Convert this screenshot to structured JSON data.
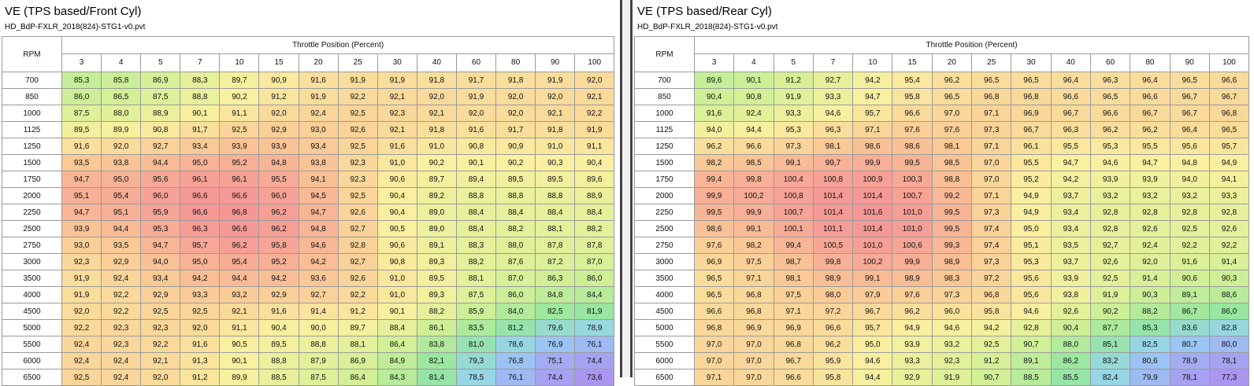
{
  "front": {
    "title": "VE (TPS based/Front Cyl)",
    "file": "HD_BdP-FXLR_2018(824)-STG1-v0.pvt",
    "rpm_label": "RPM",
    "axis_label": "Throttle Position (Percent)",
    "columns": [
      "3",
      "4",
      "5",
      "7",
      "10",
      "15",
      "20",
      "25",
      "30",
      "40",
      "60",
      "80",
      "90",
      "100"
    ],
    "rows": [
      {
        "rpm": "700",
        "values": [
          "85,3",
          "85,8",
          "86,9",
          "88,3",
          "89,7",
          "90,9",
          "91,6",
          "91,9",
          "91,9",
          "91,8",
          "91,7",
          "91,8",
          "91,9",
          "92,0"
        ]
      },
      {
        "rpm": "850",
        "values": [
          "86,0",
          "86,5",
          "87,5",
          "88,8",
          "90,2",
          "91,2",
          "91,9",
          "92,2",
          "92,1",
          "92,0",
          "91,9",
          "92,0",
          "92,0",
          "92,1"
        ]
      },
      {
        "rpm": "1000",
        "values": [
          "87,5",
          "88,0",
          "88,9",
          "90,1",
          "91,1",
          "92,0",
          "92,4",
          "92,5",
          "92,3",
          "92,1",
          "92,0",
          "92,0",
          "92,1",
          "92,2"
        ]
      },
      {
        "rpm": "1125",
        "values": [
          "89,5",
          "89,9",
          "90,8",
          "91,7",
          "92,5",
          "92,9",
          "93,0",
          "92,6",
          "92,1",
          "91,8",
          "91,6",
          "91,7",
          "91,8",
          "91,9"
        ]
      },
      {
        "rpm": "1250",
        "values": [
          "91,6",
          "92,0",
          "92,7",
          "93,4",
          "93,9",
          "93,9",
          "93,4",
          "92,5",
          "91,6",
          "91,0",
          "90,8",
          "90,9",
          "91,0",
          "91,1"
        ]
      },
      {
        "rpm": "1500",
        "values": [
          "93,5",
          "93,8",
          "94,4",
          "95,0",
          "95,2",
          "94,8",
          "93,8",
          "92,3",
          "91,0",
          "90,2",
          "90,1",
          "90,2",
          "90,3",
          "90,4"
        ]
      },
      {
        "rpm": "1750",
        "values": [
          "94,7",
          "95,0",
          "95,6",
          "96,1",
          "96,1",
          "95,5",
          "94,1",
          "92,3",
          "90,6",
          "89,7",
          "89,4",
          "89,5",
          "89,5",
          "89,6"
        ]
      },
      {
        "rpm": "2000",
        "values": [
          "95,1",
          "95,4",
          "96,0",
          "96,6",
          "96,6",
          "96,0",
          "94,5",
          "92,5",
          "90,4",
          "89,2",
          "88,8",
          "88,8",
          "88,8",
          "88,9"
        ]
      },
      {
        "rpm": "2250",
        "values": [
          "94,7",
          "95,1",
          "95,9",
          "96,6",
          "96,8",
          "96,2",
          "94,7",
          "92,6",
          "90,4",
          "89,0",
          "88,4",
          "88,4",
          "88,4",
          "88,4"
        ]
      },
      {
        "rpm": "2500",
        "values": [
          "93,9",
          "94,4",
          "95,3",
          "96,3",
          "96,6",
          "96,2",
          "94,8",
          "92,7",
          "90,5",
          "89,0",
          "88,4",
          "88,2",
          "88,1",
          "88,2"
        ]
      },
      {
        "rpm": "2750",
        "values": [
          "93,0",
          "93,5",
          "94,7",
          "95,7",
          "96,2",
          "95,8",
          "94,6",
          "92,8",
          "90,6",
          "89,1",
          "88,3",
          "88,0",
          "87,8",
          "87,8"
        ]
      },
      {
        "rpm": "3000",
        "values": [
          "92,3",
          "92,9",
          "94,0",
          "95,0",
          "95,4",
          "95,2",
          "94,2",
          "92,7",
          "90,8",
          "89,3",
          "88,2",
          "87,6",
          "87,2",
          "87,0"
        ]
      },
      {
        "rpm": "3500",
        "values": [
          "91,9",
          "92,4",
          "93,4",
          "94,2",
          "94,4",
          "94,2",
          "93,6",
          "92,6",
          "91,0",
          "89,5",
          "88,1",
          "87,0",
          "86,3",
          "86,0"
        ]
      },
      {
        "rpm": "4000",
        "values": [
          "91,9",
          "92,2",
          "92,9",
          "93,3",
          "93,2",
          "92,9",
          "92,7",
          "92,2",
          "91,0",
          "89,3",
          "87,5",
          "86,0",
          "84,8",
          "84,4"
        ]
      },
      {
        "rpm": "4500",
        "values": [
          "92,0",
          "92,2",
          "92,5",
          "92,5",
          "92,1",
          "91,6",
          "91,4",
          "91,2",
          "90,1",
          "88,2",
          "85,9",
          "84,0",
          "82,5",
          "81,9"
        ]
      },
      {
        "rpm": "5000",
        "values": [
          "92,2",
          "92,3",
          "92,3",
          "92,0",
          "91,1",
          "90,4",
          "90,0",
          "89,7",
          "88,4",
          "86,1",
          "83,5",
          "81,2",
          "79,6",
          "78,9"
        ]
      },
      {
        "rpm": "5500",
        "values": [
          "92,4",
          "92,3",
          "92,2",
          "91,6",
          "90,5",
          "89,5",
          "88,8",
          "88,1",
          "86,4",
          "83,8",
          "81,0",
          "78,6",
          "76,9",
          "76,1"
        ]
      },
      {
        "rpm": "6000",
        "values": [
          "92,4",
          "92,4",
          "92,1",
          "91,3",
          "90,1",
          "88,8",
          "87,9",
          "86,9",
          "84,9",
          "82,1",
          "79,3",
          "76,8",
          "75,1",
          "74,4"
        ]
      },
      {
        "rpm": "6500",
        "values": [
          "92,5",
          "92,4",
          "92,0",
          "91,2",
          "89,9",
          "88,5",
          "87,5",
          "86,4",
          "84,3",
          "81,4",
          "78,5",
          "76,1",
          "74,4",
          "73,6"
        ]
      }
    ]
  },
  "rear": {
    "title": "VE (TPS based/Rear Cyl)",
    "file": "HD_BdP-FXLR_2018(824)-STG1-v0.pvt",
    "rpm_label": "RPM",
    "axis_label": "Throttle Position (Percent)",
    "columns": [
      "3",
      "4",
      "5",
      "7",
      "10",
      "15",
      "20",
      "25",
      "30",
      "40",
      "60",
      "80",
      "90",
      "100"
    ],
    "rows": [
      {
        "rpm": "700",
        "values": [
          "89,6",
          "90,1",
          "91,2",
          "92,7",
          "94,2",
          "95,4",
          "96,2",
          "96,5",
          "96,5",
          "96,4",
          "96,3",
          "96,4",
          "96,5",
          "96,6"
        ]
      },
      {
        "rpm": "850",
        "values": [
          "90,4",
          "90,8",
          "91,9",
          "93,3",
          "94,7",
          "95,8",
          "96,5",
          "96,8",
          "96,8",
          "96,6",
          "96,5",
          "96,6",
          "96,7",
          "96,7"
        ]
      },
      {
        "rpm": "1000",
        "values": [
          "91,6",
          "92,4",
          "93,3",
          "94,6",
          "95,7",
          "96,6",
          "97,0",
          "97,1",
          "96,9",
          "96,7",
          "96,6",
          "96,7",
          "96,7",
          "96,8"
        ]
      },
      {
        "rpm": "1125",
        "values": [
          "94,0",
          "94,4",
          "95,3",
          "96,3",
          "97,1",
          "97,6",
          "97,6",
          "97,3",
          "96,7",
          "96,3",
          "96,2",
          "96,2",
          "96,4",
          "96,5"
        ]
      },
      {
        "rpm": "1250",
        "values": [
          "96,2",
          "96,6",
          "97,3",
          "98,1",
          "98,6",
          "98,6",
          "98,1",
          "97,1",
          "96,1",
          "95,5",
          "95,3",
          "95,5",
          "95,6",
          "95,7"
        ]
      },
      {
        "rpm": "1500",
        "values": [
          "98,2",
          "98,5",
          "99,1",
          "99,7",
          "99,9",
          "99,5",
          "98,5",
          "97,0",
          "95,5",
          "94,7",
          "94,6",
          "94,7",
          "94,8",
          "94,9"
        ]
      },
      {
        "rpm": "1750",
        "values": [
          "99,4",
          "99,8",
          "100,4",
          "100,8",
          "100,9",
          "100,3",
          "98,8",
          "97,0",
          "95,2",
          "94,2",
          "93,9",
          "93,9",
          "94,0",
          "94,1"
        ]
      },
      {
        "rpm": "2000",
        "values": [
          "99,9",
          "100,2",
          "100,8",
          "101,4",
          "101,4",
          "100,7",
          "99,2",
          "97,1",
          "94,9",
          "93,7",
          "93,2",
          "93,2",
          "93,2",
          "93,3"
        ]
      },
      {
        "rpm": "2250",
        "values": [
          "99,5",
          "99,9",
          "100,7",
          "101,4",
          "101,6",
          "101,0",
          "99,5",
          "97,3",
          "94,9",
          "93,4",
          "92,8",
          "92,8",
          "92,8",
          "92,8"
        ]
      },
      {
        "rpm": "2500",
        "values": [
          "98,6",
          "99,1",
          "100,1",
          "101,1",
          "101,4",
          "101,0",
          "99,5",
          "97,4",
          "95,0",
          "93,4",
          "92,8",
          "92,6",
          "92,5",
          "92,6"
        ]
      },
      {
        "rpm": "2750",
        "values": [
          "97,6",
          "98,2",
          "99,4",
          "100,5",
          "101,0",
          "100,6",
          "99,3",
          "97,4",
          "95,1",
          "93,5",
          "92,7",
          "92,4",
          "92,2",
          "92,2"
        ]
      },
      {
        "rpm": "3000",
        "values": [
          "96,9",
          "97,5",
          "98,7",
          "99,8",
          "100,2",
          "99,9",
          "98,9",
          "97,3",
          "95,3",
          "93,7",
          "92,6",
          "92,0",
          "91,6",
          "91,4"
        ]
      },
      {
        "rpm": "3500",
        "values": [
          "96,5",
          "97,1",
          "98,1",
          "98,9",
          "99,1",
          "98,9",
          "98,3",
          "97,2",
          "95,6",
          "93,9",
          "92,5",
          "91,4",
          "90,6",
          "90,3"
        ]
      },
      {
        "rpm": "4000",
        "values": [
          "96,5",
          "96,8",
          "97,5",
          "98,0",
          "97,9",
          "97,6",
          "97,3",
          "96,8",
          "95,6",
          "93,8",
          "91,9",
          "90,3",
          "89,1",
          "88,6"
        ]
      },
      {
        "rpm": "4500",
        "values": [
          "96,6",
          "96,8",
          "97,1",
          "97,2",
          "96,7",
          "96,2",
          "96,0",
          "95,8",
          "94,6",
          "92,6",
          "90,2",
          "88,2",
          "86,7",
          "86,0"
        ]
      },
      {
        "rpm": "5000",
        "values": [
          "96,8",
          "96,9",
          "96,9",
          "96,6",
          "95,7",
          "94,9",
          "94,6",
          "94,2",
          "92,8",
          "90,4",
          "87,7",
          "85,3",
          "83,6",
          "82,8"
        ]
      },
      {
        "rpm": "5500",
        "values": [
          "97,0",
          "97,0",
          "96,8",
          "96,2",
          "95,0",
          "93,9",
          "93,2",
          "92,5",
          "90,7",
          "88,0",
          "85,1",
          "82,5",
          "80,7",
          "80,0"
        ]
      },
      {
        "rpm": "6000",
        "values": [
          "97,0",
          "97,0",
          "96,7",
          "95,9",
          "94,6",
          "93,3",
          "92,3",
          "91,2",
          "89,1",
          "86,2",
          "83,2",
          "80,6",
          "78,9",
          "78,1"
        ]
      },
      {
        "rpm": "6500",
        "values": [
          "97,1",
          "97,0",
          "96,6",
          "95,8",
          "94,4",
          "92,9",
          "91,9",
          "90,7",
          "88,5",
          "85,5",
          "82,4",
          "79,9",
          "78,1",
          "77,3"
        ]
      }
    ]
  }
}
